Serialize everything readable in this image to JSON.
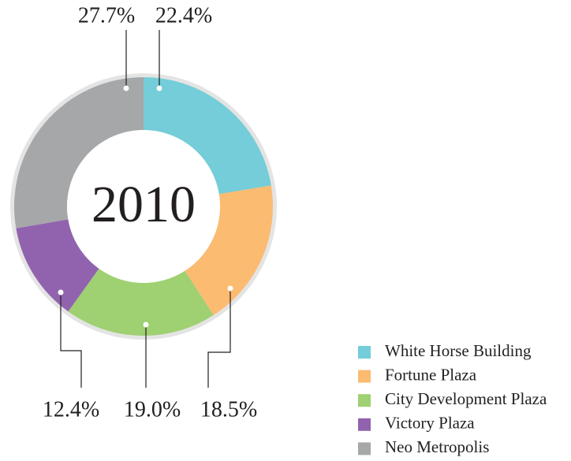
{
  "chart_data": {
    "type": "pie",
    "donut": true,
    "center_text": "2010",
    "categories": [
      "White Horse Building",
      "Fortune Plaza",
      "City Development Plaza",
      "Victory Plaza",
      "Neo Metropolis"
    ],
    "values": [
      22.4,
      18.5,
      19.0,
      12.4,
      27.7
    ],
    "value_labels": [
      "22.4%",
      "18.5%",
      "19.0%",
      "12.4%",
      "27.7%"
    ],
    "colors": [
      "#74cdd8",
      "#fbbb71",
      "#9fd072",
      "#9163ae",
      "#a6a7a9"
    ],
    "legend": "bottom-right"
  }
}
